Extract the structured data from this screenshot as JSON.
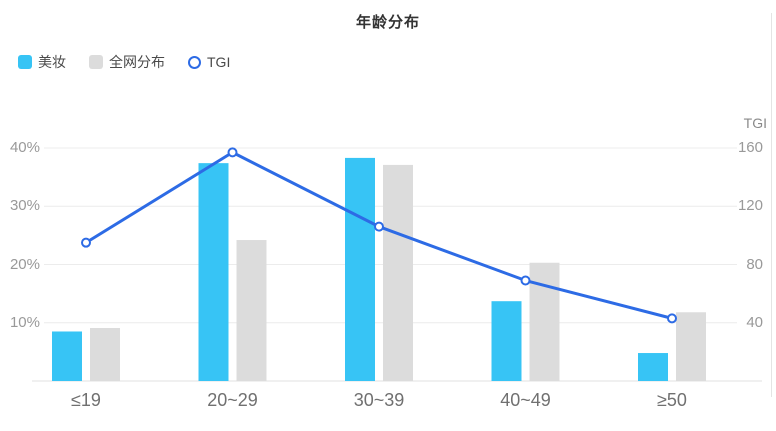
{
  "title": "年龄分布",
  "legend": {
    "items": [
      {
        "label": "美妆",
        "type": "bar",
        "color": "#37C4F5"
      },
      {
        "label": "全网分布",
        "type": "bar",
        "color": "#DCDCDC"
      },
      {
        "label": "TGI",
        "type": "line",
        "color": "#2D6BE5"
      }
    ]
  },
  "chart_data": {
    "type": "bar+line combo",
    "title": "年龄分布",
    "categories": [
      "≤19",
      "20~29",
      "30~39",
      "40~49",
      "≥50"
    ],
    "series": [
      {
        "name": "美妆",
        "type": "bar",
        "axis": "left",
        "unit": "%",
        "color": "#37C4F5",
        "values": [
          8.5,
          37.4,
          38.3,
          13.7,
          4.8
        ]
      },
      {
        "name": "全网分布",
        "type": "bar",
        "axis": "left",
        "unit": "%",
        "color": "#DCDCDC",
        "values": [
          9.1,
          24.2,
          37.1,
          20.3,
          11.8
        ]
      },
      {
        "name": "TGI",
        "type": "line",
        "axis": "right",
        "color": "#2D6BE5",
        "values": [
          95,
          157,
          106,
          69,
          43
        ]
      }
    ],
    "left_axis": {
      "min": 0,
      "max": 40,
      "tick_values": [
        10,
        20,
        30,
        40
      ],
      "tick_labels": [
        "10%",
        "20%",
        "30%",
        "40%"
      ]
    },
    "right_axis": {
      "title": "TGI",
      "min": 0,
      "max": 160,
      "tick_values": [
        40,
        80,
        120,
        160
      ],
      "tick_labels": [
        "40",
        "80",
        "120",
        "160"
      ]
    },
    "grid": true,
    "legend_position": "top-left",
    "colors": {
      "grid_line": "#ECECEC",
      "axis_line": "#E0E0E0",
      "tick_text": "#999999",
      "category_text": "#707070",
      "title_text": "#333333"
    }
  }
}
